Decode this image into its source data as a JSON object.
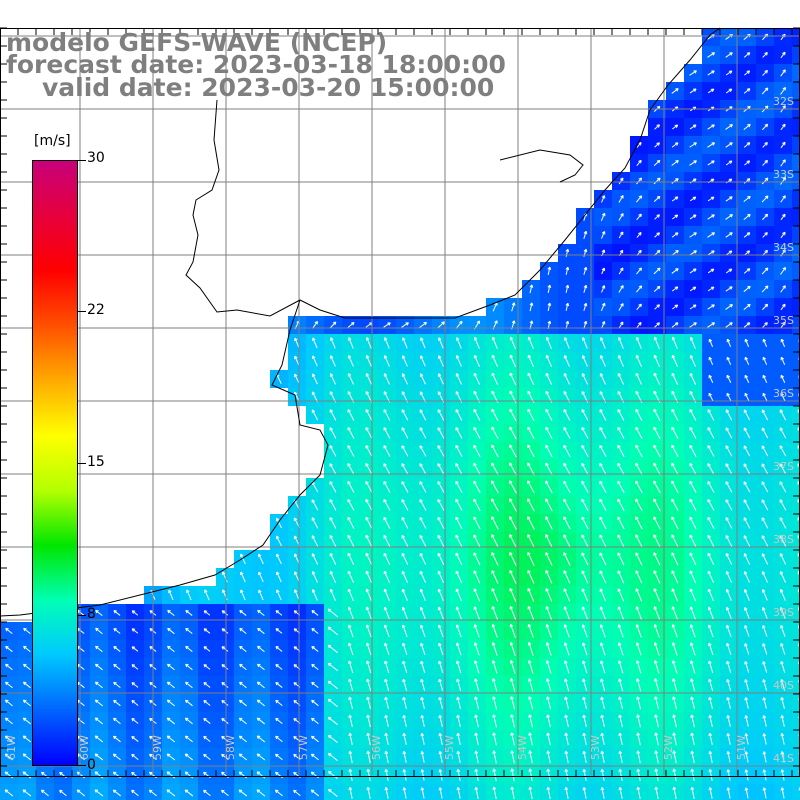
{
  "title": {
    "line1": "modelo GEFS-WAVE (NCEP)",
    "line2": "forecast date: 2023-03-18 18:00:00",
    "line3": "valid date: 2023-03-20 15:00:00"
  },
  "colorbar": {
    "unit": "[m/s]",
    "ticks": [
      "30",
      "22",
      "15",
      "8",
      "0"
    ],
    "tick_values": [
      30,
      22,
      15,
      8,
      0
    ],
    "min": 0,
    "max": 30,
    "colors": [
      "#0000ff",
      "#0064ff",
      "#00c8ff",
      "#00ffb4",
      "#00e600",
      "#b4ff00",
      "#ffff00",
      "#ffaa00",
      "#ff5000",
      "#ff0000",
      "#e6003c",
      "#c8007a"
    ]
  },
  "map": {
    "latitude_labels": [
      "32S",
      "33S",
      "34S",
      "35S",
      "36S",
      "37S",
      "38S",
      "39S",
      "40S",
      "41S"
    ],
    "longitude_labels": [
      "61W",
      "60W",
      "59W",
      "58W",
      "57W",
      "56W",
      "55W",
      "54W",
      "53W",
      "52W",
      "51W"
    ],
    "grid_color": "#7f7f7f",
    "coastline_color": "#000000",
    "arrow_color": "#ffffff",
    "land_color": "#ffffff"
  }
}
